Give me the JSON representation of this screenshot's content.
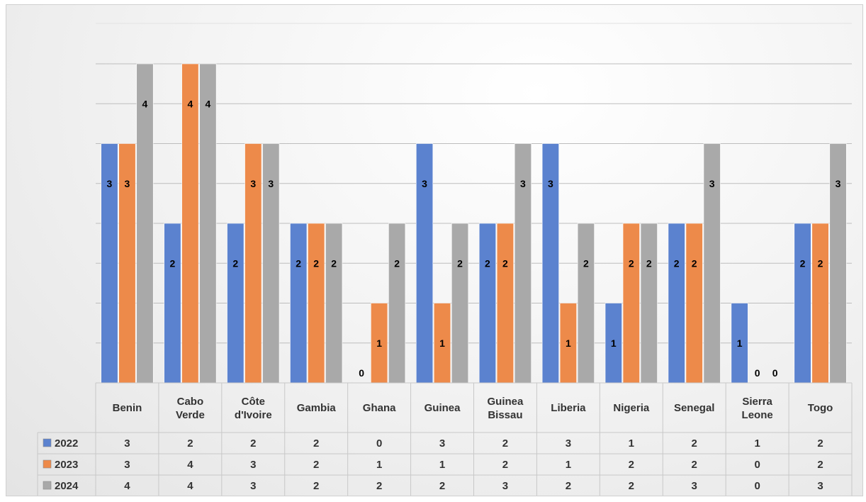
{
  "chart_data": {
    "type": "bar",
    "title": "",
    "xlabel": "",
    "ylabel": "",
    "ylim": [
      0,
      4
    ],
    "grid": true,
    "legend": "data-table",
    "categories": [
      "Benin",
      "Cabo Verde",
      "Côte d'Ivoire",
      "Gambia",
      "Ghana",
      "Guinea",
      "Guinea Bissau",
      "Liberia",
      "Nigeria",
      "Senegal",
      "Sierra Leone",
      "Togo"
    ],
    "series": [
      {
        "name": "2022",
        "color": "#5b82cf",
        "values": [
          3,
          2,
          2,
          2,
          0,
          3,
          2,
          3,
          1,
          2,
          1,
          2
        ]
      },
      {
        "name": "2023",
        "color": "#ed8a4a",
        "values": [
          3,
          4,
          3,
          2,
          1,
          1,
          2,
          1,
          2,
          2,
          0,
          2
        ]
      },
      {
        "name": "2024",
        "color": "#a9a9a9",
        "values": [
          4,
          4,
          3,
          2,
          2,
          2,
          3,
          2,
          2,
          3,
          0,
          3
        ]
      }
    ]
  }
}
